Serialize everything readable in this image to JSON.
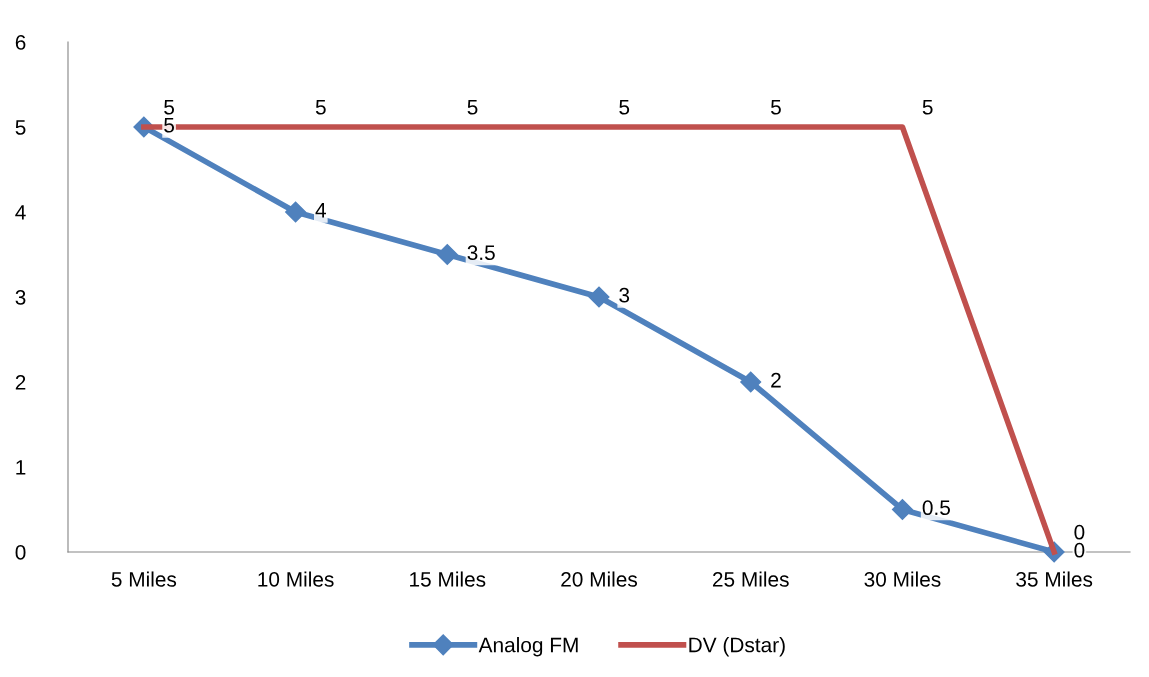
{
  "chart_data": {
    "type": "line",
    "categories": [
      "5 Miles",
      "10 Miles",
      "15 Miles",
      "20 Miles",
      "25 Miles",
      "30 Miles",
      "35 Miles"
    ],
    "series": [
      {
        "name": "Analog FM",
        "color": "#4f81bd",
        "marker": "diamond",
        "values": [
          5,
          4,
          3.5,
          3,
          2,
          0.5,
          0
        ]
      },
      {
        "name": "DV (Dstar)",
        "color": "#c0504d",
        "marker": "none",
        "values": [
          5,
          5,
          5,
          5,
          5,
          5,
          0
        ]
      }
    ],
    "ylim": [
      0,
      6
    ],
    "yticks": [
      0,
      1,
      2,
      3,
      4,
      5,
      6
    ],
    "grid": false,
    "legend": "bottom",
    "data_labels": true
  }
}
